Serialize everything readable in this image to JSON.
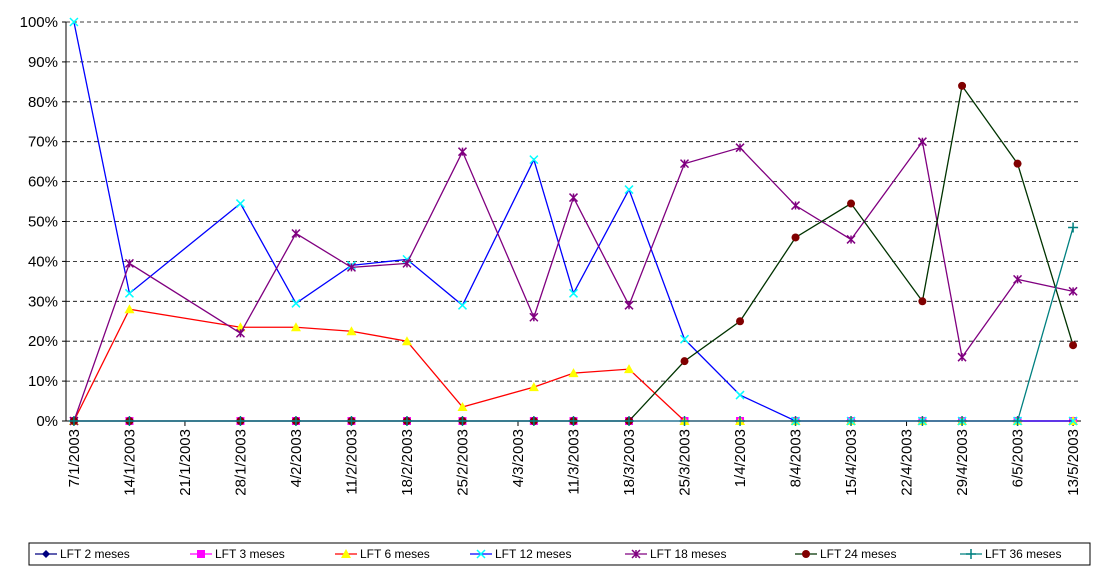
{
  "chart_data": {
    "type": "line",
    "x": [
      "2003-01-07",
      "2003-01-14",
      "2003-01-28",
      "2003-02-04",
      "2003-02-11",
      "2003-02-18",
      "2003-02-25",
      "2003-03-06",
      "2003-03-11",
      "2003-03-18",
      "2003-03-25",
      "2003-04-01",
      "2003-04-08",
      "2003-04-15",
      "2003-04-24",
      "2003-04-29",
      "2003-05-06",
      "2003-05-13"
    ],
    "xlim": [
      "2003-01-06",
      "2003-05-14"
    ],
    "xticks": [
      {
        "value": "2003-01-07",
        "label": "7/1/2003"
      },
      {
        "value": "2003-01-14",
        "label": "14/1/2003"
      },
      {
        "value": "2003-01-21",
        "label": "21/1/2003"
      },
      {
        "value": "2003-01-28",
        "label": "28/1/2003"
      },
      {
        "value": "2003-02-04",
        "label": "4/2/2003"
      },
      {
        "value": "2003-02-11",
        "label": "11/2/2003"
      },
      {
        "value": "2003-02-18",
        "label": "18/2/2003"
      },
      {
        "value": "2003-02-25",
        "label": "25/2/2003"
      },
      {
        "value": "2003-03-04",
        "label": "4/3/2003"
      },
      {
        "value": "2003-03-11",
        "label": "11/3/2003"
      },
      {
        "value": "2003-03-18",
        "label": "18/3/2003"
      },
      {
        "value": "2003-03-25",
        "label": "25/3/2003"
      },
      {
        "value": "2003-04-01",
        "label": "1/4/2003"
      },
      {
        "value": "2003-04-08",
        "label": "8/4/2003"
      },
      {
        "value": "2003-04-15",
        "label": "15/4/2003"
      },
      {
        "value": "2003-04-22",
        "label": "22/4/2003"
      },
      {
        "value": "2003-04-29",
        "label": "29/4/2003"
      },
      {
        "value": "2003-05-06",
        "label": "6/5/2003"
      },
      {
        "value": "2003-05-13",
        "label": "13/5/2003"
      }
    ],
    "ylim": [
      0,
      100
    ],
    "yticks": [
      {
        "value": 0,
        "label": "0%"
      },
      {
        "value": 10,
        "label": "10%"
      },
      {
        "value": 20,
        "label": "20%"
      },
      {
        "value": 30,
        "label": "30%"
      },
      {
        "value": 40,
        "label": "40%"
      },
      {
        "value": 50,
        "label": "50%"
      },
      {
        "value": 60,
        "label": "60%"
      },
      {
        "value": 70,
        "label": "70%"
      },
      {
        "value": 80,
        "label": "80%"
      },
      {
        "value": 90,
        "label": "90%"
      },
      {
        "value": 100,
        "label": "100%"
      }
    ],
    "grid": true,
    "legend": "bottom",
    "series": [
      {
        "name": "LFT 2 meses",
        "color": "#000080",
        "marker_color": "#000080",
        "marker": "diamond",
        "values": [
          0,
          0,
          0,
          0,
          0,
          0,
          0,
          0,
          0,
          0,
          null,
          null,
          null,
          null,
          null,
          null,
          null,
          null
        ]
      },
      {
        "name": "LFT 3 meses",
        "color": "#ff00ff",
        "marker_color": "#ff00ff",
        "marker": "square",
        "values": [
          0,
          0,
          0,
          0,
          0,
          0,
          0,
          0,
          0,
          0,
          0,
          0,
          0,
          0,
          0,
          0,
          0,
          0
        ]
      },
      {
        "name": "LFT 6 meses",
        "color": "#ff0000",
        "marker_color": "#ffff00",
        "marker": "triangle",
        "values": [
          0,
          28,
          23.5,
          23.5,
          22.5,
          20,
          3.5,
          8.5,
          12,
          13,
          0,
          0,
          0,
          0,
          0,
          0,
          0,
          0
        ]
      },
      {
        "name": "LFT 12 meses",
        "color": "#0000ff",
        "marker_color": "#00ffff",
        "marker": "x",
        "values": [
          100,
          32,
          54.5,
          29.5,
          39,
          40.5,
          29,
          65.5,
          32,
          58,
          20.5,
          6.5,
          0,
          0,
          0,
          0,
          0,
          0
        ]
      },
      {
        "name": "LFT 18 meses",
        "color": "#800080",
        "marker_color": "#800080",
        "marker": "star",
        "values": [
          0,
          39.5,
          22,
          47,
          38.5,
          39.5,
          67.5,
          26,
          56,
          29,
          64.5,
          68.5,
          54,
          45.5,
          70,
          16,
          35.5,
          32.5
        ]
      },
      {
        "name": "LFT 24 meses",
        "color": "#003300",
        "marker_color": "#800000",
        "marker": "circle",
        "values": [
          0,
          0,
          0,
          0,
          0,
          0,
          0,
          0,
          0,
          0,
          15,
          25,
          46,
          54.5,
          30,
          84,
          64.5,
          19
        ]
      },
      {
        "name": "LFT 36 meses",
        "color": "#008080",
        "marker_color": "#008080",
        "marker": "plus",
        "values": [
          0,
          0,
          0,
          0,
          0,
          0,
          0,
          0,
          0,
          0,
          0,
          0,
          0,
          0,
          0,
          0,
          0,
          48.5
        ]
      }
    ]
  }
}
